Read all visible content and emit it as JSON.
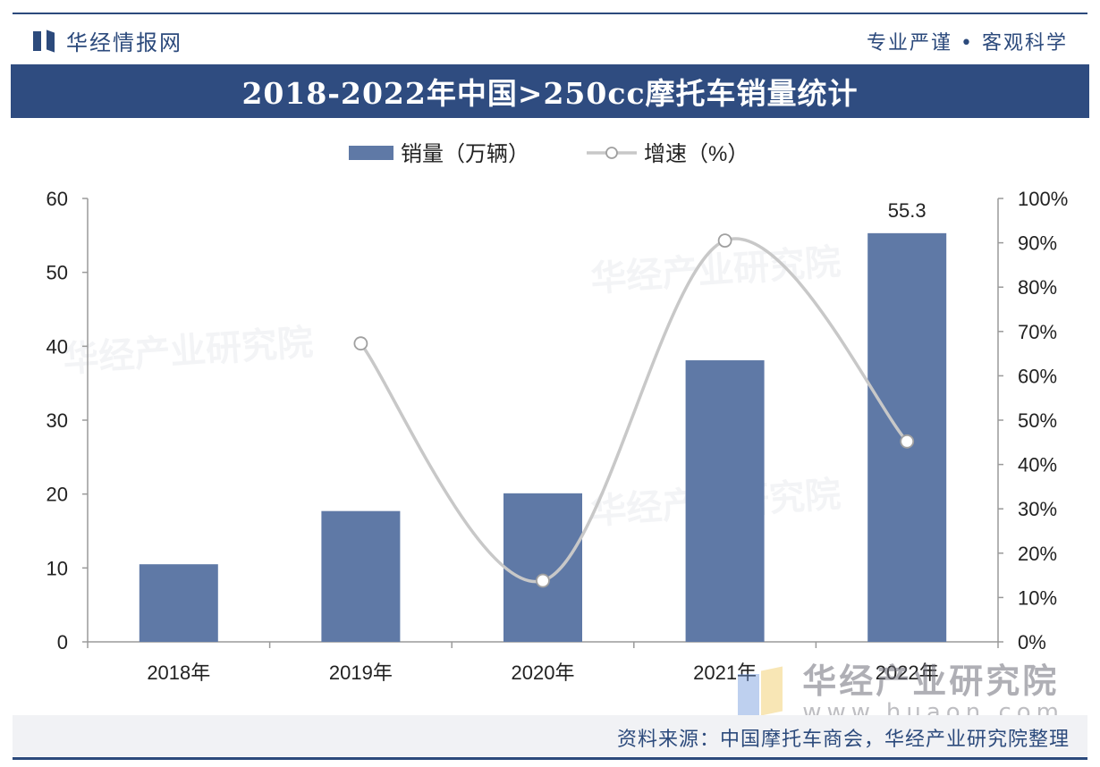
{
  "header": {
    "brand": "华经情报网",
    "slogan": "专业严谨 • 客观科学",
    "logo_icon": "huajing-logo-icon"
  },
  "title": "2018-2022年中国>250cc摩托车销量统计",
  "legend": {
    "bar_label": "销量（万辆）",
    "line_label": "增速（%）"
  },
  "watermark": {
    "name": "华经产业研究院",
    "url": "www.huaon.com"
  },
  "source": "资料来源：中国摩托车商会，华经产业研究院整理",
  "colors": {
    "title_bg": "#2f4c80",
    "bar": "#5f79a6",
    "line": "#c8c8c8",
    "brand": "#2c4a7c"
  },
  "chart_data": {
    "type": "bar",
    "title": "2018-2022年中国>250cc摩托车销量统计",
    "categories": [
      "2018年",
      "2019年",
      "2020年",
      "2021年",
      "2022年"
    ],
    "series": [
      {
        "name": "销量（万辆）",
        "type": "bar",
        "axis": "left",
        "values": [
          10.5,
          17.7,
          20.1,
          38.1,
          55.3
        ],
        "data_labels": [
          null,
          null,
          null,
          null,
          "55.3"
        ]
      },
      {
        "name": "增速（%）",
        "type": "line",
        "axis": "right",
        "values": [
          null,
          67.3,
          13.8,
          90.5,
          45.2
        ]
      }
    ],
    "y_left": {
      "min": 0,
      "max": 60,
      "ticks": [
        "0",
        "10",
        "20",
        "30",
        "40",
        "50",
        "60"
      ]
    },
    "y_right": {
      "min": 0,
      "max": 100,
      "ticks": [
        "0%",
        "10%",
        "20%",
        "30%",
        "40%",
        "50%",
        "60%",
        "70%",
        "80%",
        "90%",
        "100%"
      ]
    },
    "grid": false,
    "legend_position": "top-center"
  }
}
